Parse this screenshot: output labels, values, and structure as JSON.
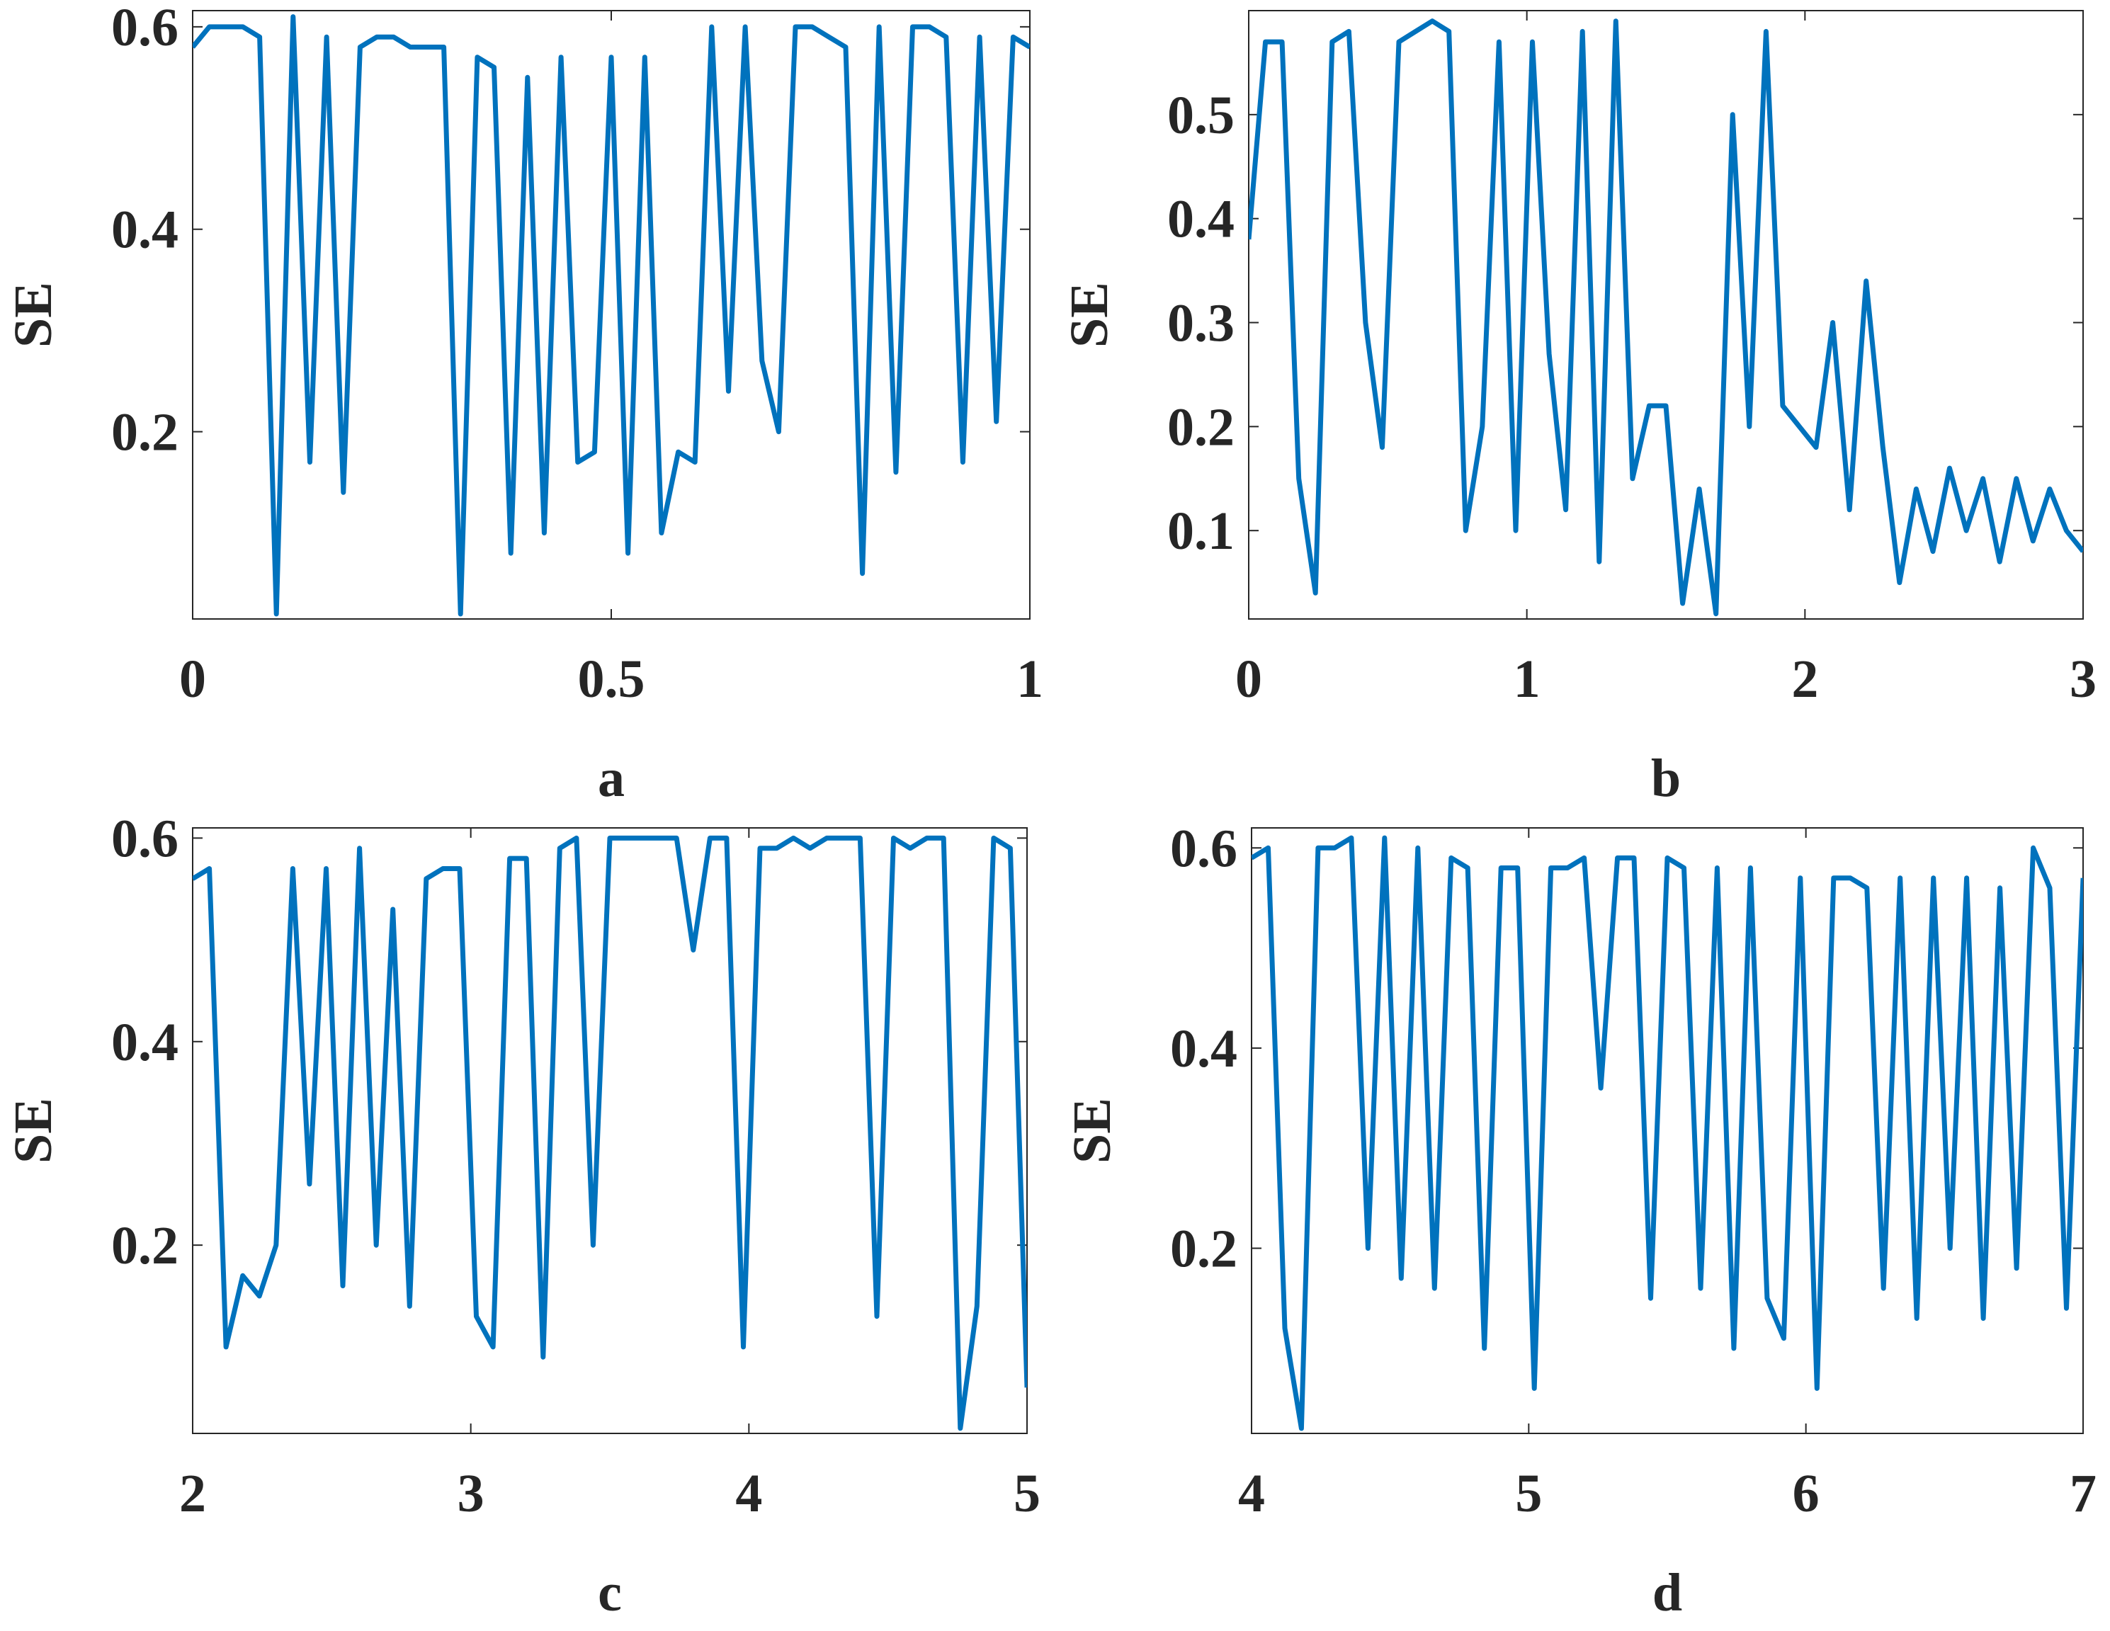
{
  "chart_data": [
    {
      "type": "line",
      "xlabel": "a",
      "ylabel": "SE",
      "color": "#0072bd",
      "xlim": [
        0,
        1
      ],
      "xticks": [
        0,
        0.5,
        1
      ],
      "ylim": [
        0.015,
        0.616
      ],
      "yticks": [
        0.2,
        0.4,
        0.6
      ],
      "x": [
        0,
        0.02,
        0.04,
        0.06,
        0.08,
        0.1,
        0.12,
        0.14,
        0.16,
        0.18,
        0.2,
        0.22,
        0.24,
        0.26,
        0.28,
        0.3,
        0.32,
        0.34,
        0.36,
        0.38,
        0.4,
        0.42,
        0.44,
        0.46,
        0.48,
        0.5,
        0.52,
        0.54,
        0.56,
        0.58,
        0.6,
        0.62,
        0.64,
        0.66,
        0.68,
        0.7,
        0.72,
        0.74,
        0.76,
        0.78,
        0.8,
        0.82,
        0.84,
        0.86,
        0.88,
        0.9,
        0.92,
        0.94,
        0.96,
        0.98,
        1
      ],
      "values": [
        0.58,
        0.6,
        0.6,
        0.6,
        0.59,
        0.02,
        0.61,
        0.17,
        0.59,
        0.14,
        0.58,
        0.59,
        0.59,
        0.58,
        0.58,
        0.58,
        0.02,
        0.57,
        0.56,
        0.08,
        0.55,
        0.1,
        0.57,
        0.17,
        0.18,
        0.57,
        0.08,
        0.57,
        0.1,
        0.18,
        0.17,
        0.6,
        0.24,
        0.6,
        0.27,
        0.2,
        0.6,
        0.6,
        0.59,
        0.58,
        0.06,
        0.6,
        0.16,
        0.6,
        0.6,
        0.59,
        0.17,
        0.59,
        0.21,
        0.59,
        0.58
      ]
    },
    {
      "type": "line",
      "xlabel": "b",
      "ylabel": "SE",
      "color": "#0072bd",
      "xlim": [
        0,
        3
      ],
      "xticks": [
        0,
        1,
        2,
        3
      ],
      "ylim": [
        0.015,
        0.6
      ],
      "yticks": [
        0.1,
        0.2,
        0.3,
        0.4,
        0.5
      ],
      "x": [
        0,
        0.06,
        0.12,
        0.18,
        0.24,
        0.3,
        0.36,
        0.42,
        0.48,
        0.54,
        0.6,
        0.66,
        0.72,
        0.78,
        0.84,
        0.9,
        0.96,
        1.02,
        1.08,
        1.14,
        1.2,
        1.26,
        1.32,
        1.38,
        1.44,
        1.5,
        1.56,
        1.62,
        1.68,
        1.74,
        1.8,
        1.86,
        1.92,
        1.98,
        2.04,
        2.1,
        2.16,
        2.22,
        2.28,
        2.34,
        2.4,
        2.46,
        2.52,
        2.58,
        2.64,
        2.7,
        2.76,
        2.82,
        2.88,
        2.94,
        3
      ],
      "values": [
        0.38,
        0.57,
        0.57,
        0.15,
        0.04,
        0.57,
        0.58,
        0.3,
        0.18,
        0.57,
        0.58,
        0.59,
        0.58,
        0.1,
        0.2,
        0.57,
        0.1,
        0.57,
        0.27,
        0.12,
        0.58,
        0.07,
        0.59,
        0.15,
        0.22,
        0.22,
        0.03,
        0.14,
        0.02,
        0.5,
        0.2,
        0.58,
        0.22,
        0.2,
        0.18,
        0.3,
        0.12,
        0.34,
        0.18,
        0.05,
        0.14,
        0.08,
        0.16,
        0.1,
        0.15,
        0.07,
        0.15,
        0.09,
        0.14,
        0.1,
        0.08
      ]
    },
    {
      "type": "line",
      "xlabel": "c",
      "ylabel": "SE",
      "color": "#0072bd",
      "xlim": [
        2,
        5
      ],
      "xticks": [
        2,
        3,
        4,
        5
      ],
      "ylim": [
        0.015,
        0.61
      ],
      "yticks": [
        0.2,
        0.4,
        0.6
      ],
      "x": [
        2,
        2.06,
        2.12,
        2.18,
        2.24,
        2.3,
        2.36,
        2.42,
        2.48,
        2.54,
        2.6,
        2.66,
        2.72,
        2.78,
        2.84,
        2.9,
        2.96,
        3.02,
        3.08,
        3.14,
        3.2,
        3.26,
        3.32,
        3.38,
        3.44,
        3.5,
        3.56,
        3.62,
        3.68,
        3.74,
        3.8,
        3.86,
        3.92,
        3.98,
        4.04,
        4.1,
        4.16,
        4.22,
        4.28,
        4.34,
        4.4,
        4.46,
        4.52,
        4.58,
        4.64,
        4.7,
        4.76,
        4.82,
        4.88,
        4.94,
        5
      ],
      "values": [
        0.56,
        0.57,
        0.1,
        0.17,
        0.15,
        0.2,
        0.57,
        0.26,
        0.57,
        0.16,
        0.59,
        0.2,
        0.53,
        0.14,
        0.56,
        0.57,
        0.57,
        0.13,
        0.1,
        0.58,
        0.58,
        0.09,
        0.59,
        0.6,
        0.2,
        0.6,
        0.6,
        0.6,
        0.6,
        0.6,
        0.49,
        0.6,
        0.6,
        0.1,
        0.59,
        0.59,
        0.6,
        0.59,
        0.6,
        0.6,
        0.6,
        0.13,
        0.6,
        0.59,
        0.6,
        0.6,
        0.02,
        0.14,
        0.6,
        0.59,
        0.06
      ]
    },
    {
      "type": "line",
      "xlabel": "d",
      "ylabel": "SE",
      "color": "#0072bd",
      "xlim": [
        4,
        7
      ],
      "xticks": [
        4,
        5,
        6,
        7
      ],
      "ylim": [
        0.015,
        0.62
      ],
      "yticks": [
        0.2,
        0.4,
        0.6
      ],
      "x": [
        4,
        4.06,
        4.12,
        4.18,
        4.24,
        4.3,
        4.36,
        4.42,
        4.48,
        4.54,
        4.6,
        4.66,
        4.72,
        4.78,
        4.84,
        4.9,
        4.96,
        5.02,
        5.08,
        5.14,
        5.2,
        5.26,
        5.32,
        5.38,
        5.44,
        5.5,
        5.56,
        5.62,
        5.68,
        5.74,
        5.8,
        5.86,
        5.92,
        5.98,
        6.04,
        6.1,
        6.16,
        6.22,
        6.28,
        6.34,
        6.4,
        6.46,
        6.52,
        6.58,
        6.64,
        6.7,
        6.76,
        6.82,
        6.88,
        6.94,
        7
      ],
      "values": [
        0.59,
        0.6,
        0.12,
        0.02,
        0.6,
        0.6,
        0.61,
        0.2,
        0.61,
        0.17,
        0.6,
        0.16,
        0.59,
        0.58,
        0.1,
        0.58,
        0.58,
        0.06,
        0.58,
        0.58,
        0.59,
        0.36,
        0.59,
        0.59,
        0.15,
        0.59,
        0.58,
        0.16,
        0.58,
        0.1,
        0.58,
        0.15,
        0.11,
        0.57,
        0.06,
        0.57,
        0.57,
        0.56,
        0.16,
        0.57,
        0.13,
        0.57,
        0.2,
        0.57,
        0.13,
        0.56,
        0.18,
        0.6,
        0.56,
        0.14,
        0.57
      ]
    }
  ]
}
